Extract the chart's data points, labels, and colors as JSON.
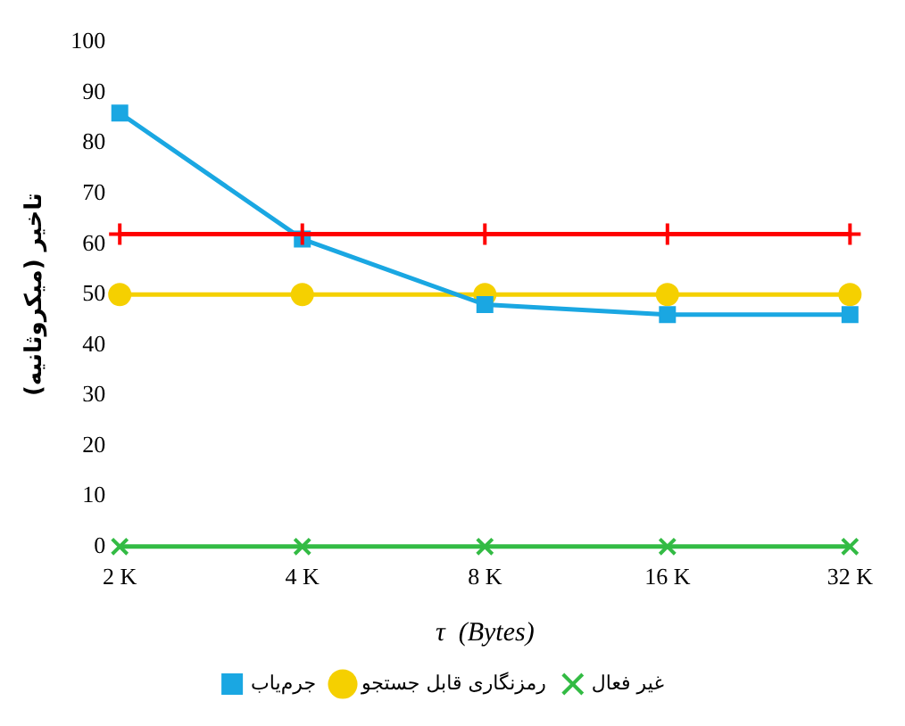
{
  "chart_data": {
    "type": "line",
    "xlabel": "τ  (Bytes)",
    "ylabel": "تاخیر (میکروثانیه)",
    "categories": [
      "2 K",
      "4 K",
      "8 K",
      "16 K",
      "32 K"
    ],
    "ylim": [
      0,
      100
    ],
    "yticks": [
      0,
      10,
      20,
      30,
      40,
      50,
      60,
      70,
      80,
      90,
      100
    ],
    "grid": false,
    "legend": "bottom",
    "line_style": "solid",
    "series": [
      {
        "name": "جرم‌یاب",
        "color": "#1aa7e2",
        "marker": "square",
        "values": [
          86,
          61,
          48,
          46,
          46
        ]
      },
      {
        "name": "رمزنگاری قابل جستجو",
        "color": "#f5d000",
        "marker": "circle",
        "values": [
          50,
          50,
          50,
          50,
          50
        ]
      },
      {
        "color": "#ff0000",
        "marker": "cross",
        "values": [
          62,
          62,
          62,
          62,
          62
        ]
      },
      {
        "name": "غیر فعال",
        "color": "#33bb44",
        "marker": "cross",
        "values": [
          0,
          0,
          0,
          0,
          0
        ]
      }
    ]
  }
}
